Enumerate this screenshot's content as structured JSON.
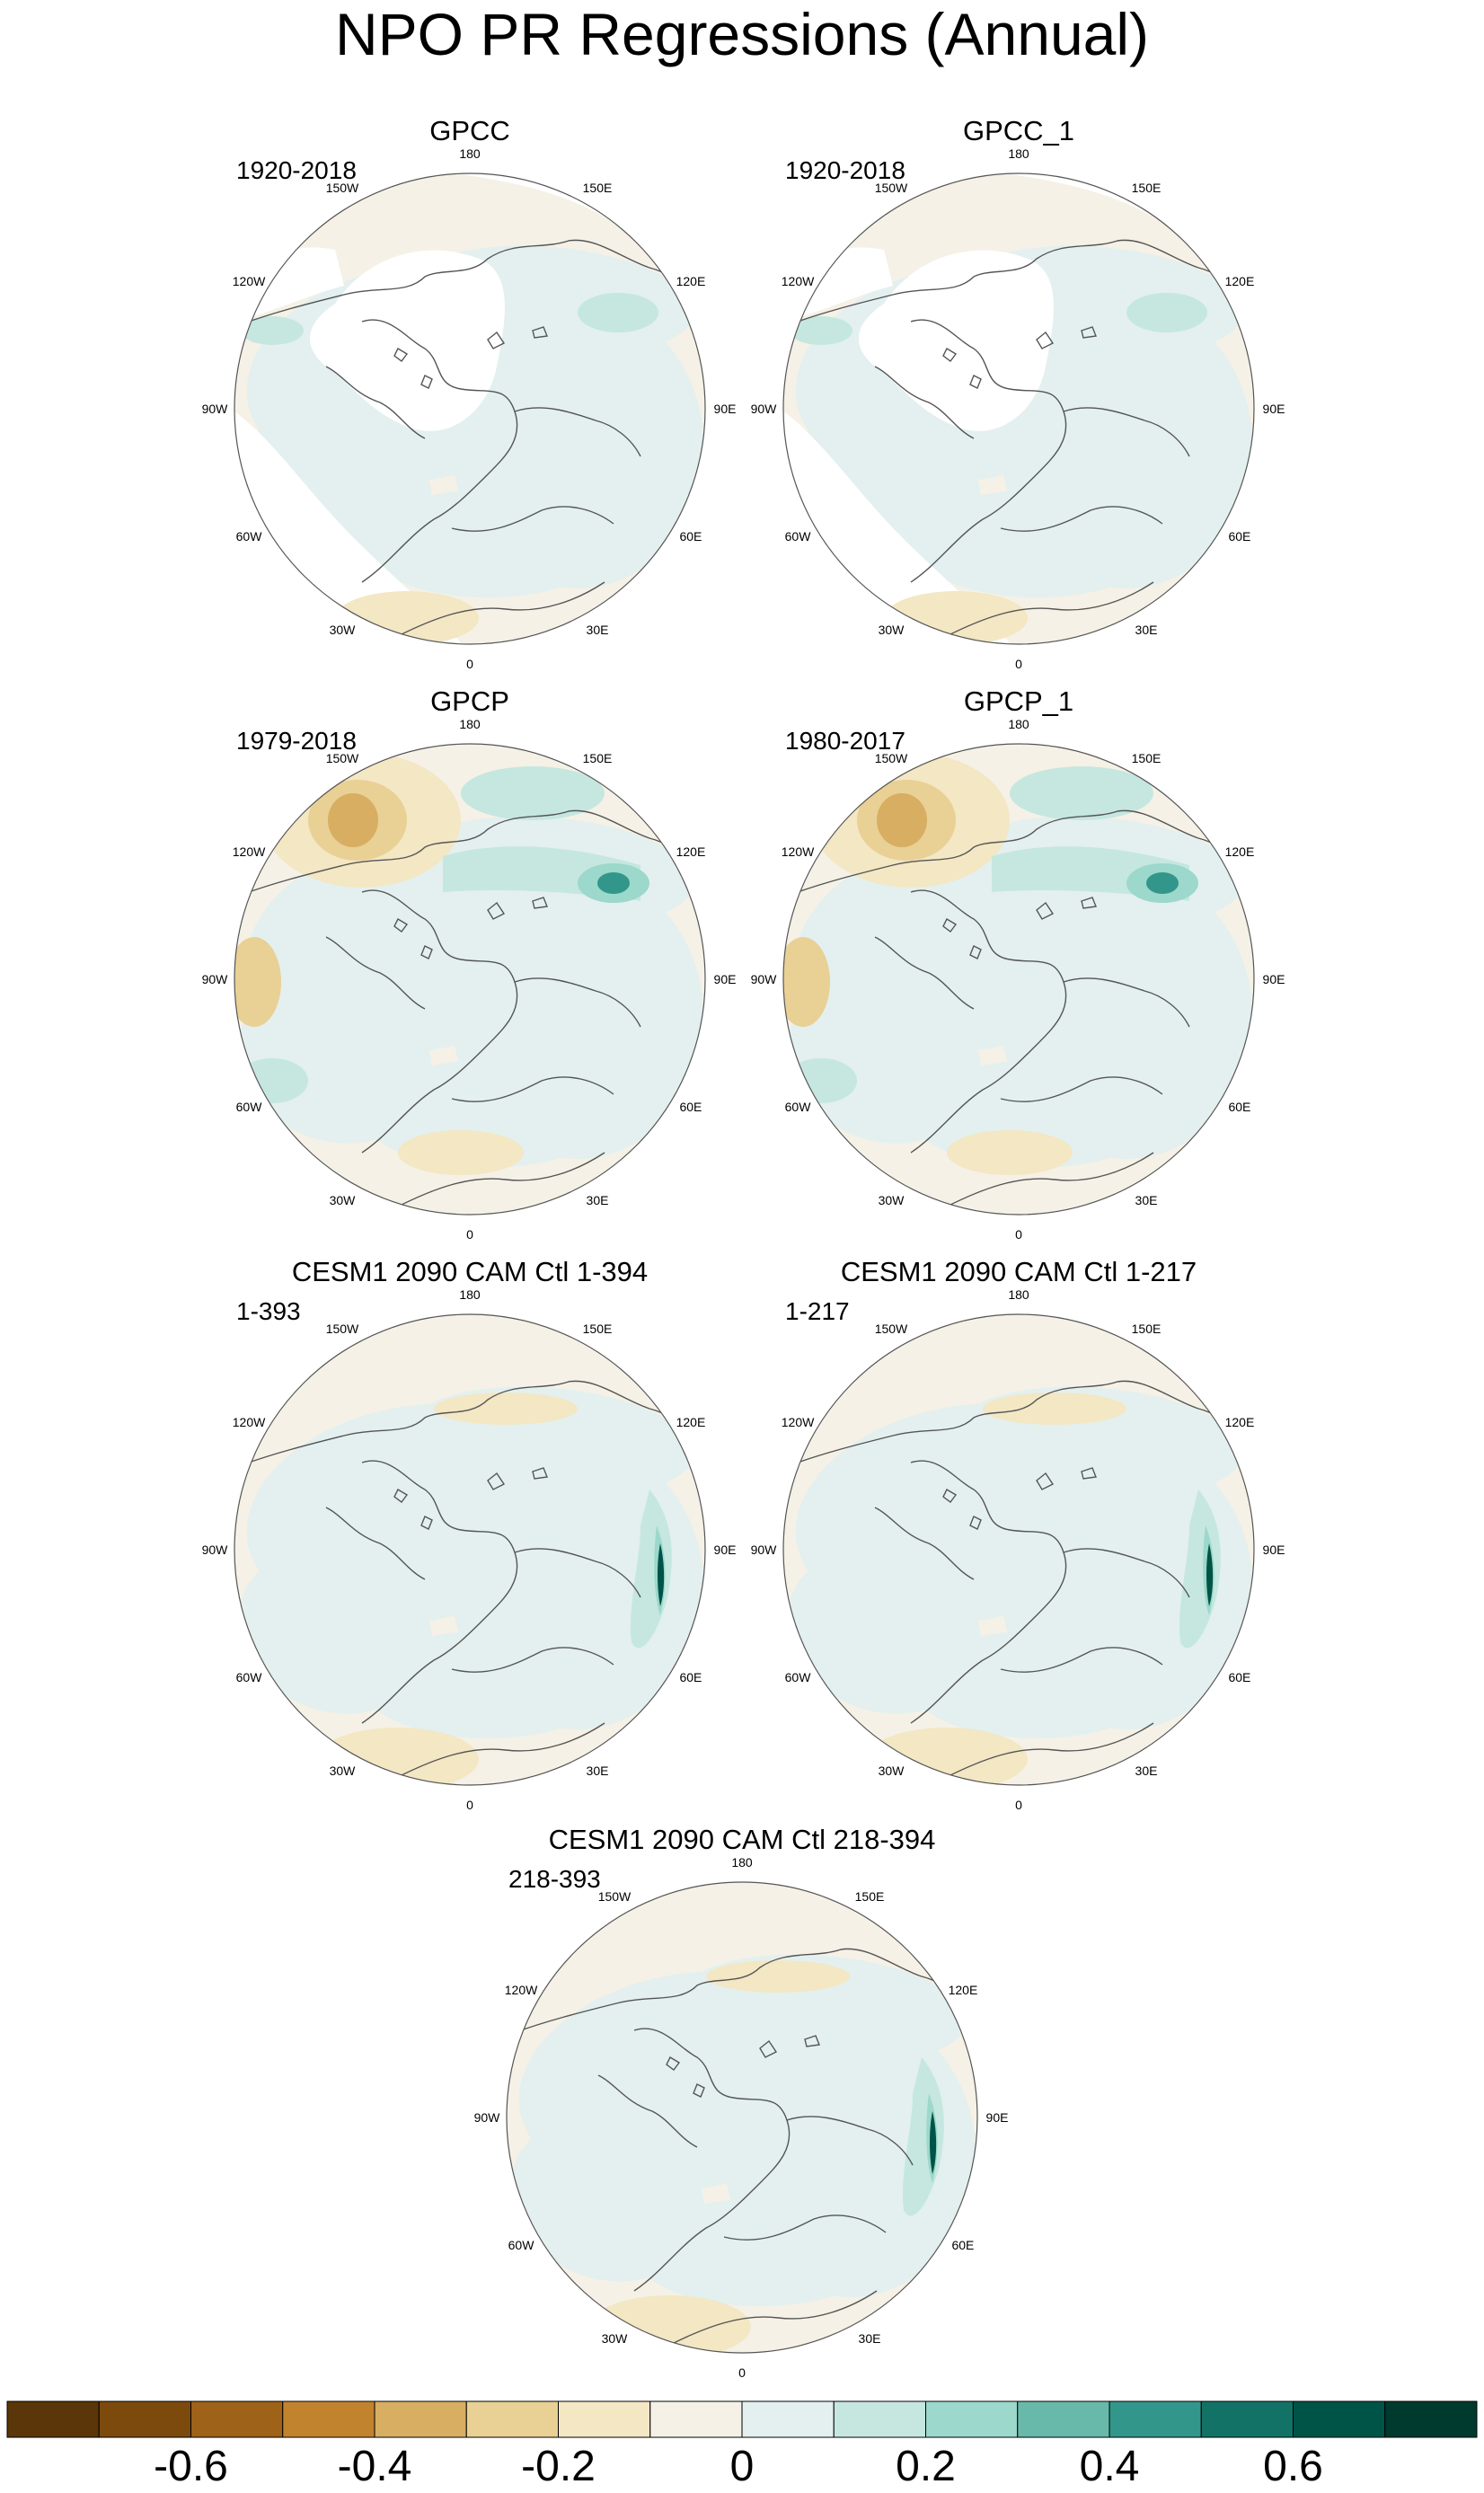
{
  "title": "NPO PR Regressions (Annual)",
  "lon_labels": [
    "180",
    "150E",
    "120E",
    "90E",
    "60E",
    "30E",
    "0",
    "30W",
    "60W",
    "90W",
    "120W",
    "150W"
  ],
  "panels": [
    {
      "title": "GPCC",
      "period": "1920-2018"
    },
    {
      "title": "GPCC_1",
      "period": "1920-2018"
    },
    {
      "title": "GPCP",
      "period": "1979-2018"
    },
    {
      "title": "GPCP_1",
      "period": "1980-2017"
    },
    {
      "title": "CESM1 2090 CAM Ctl 1-394",
      "period": "1-393"
    },
    {
      "title": "CESM1 2090 CAM Ctl 1-217",
      "period": "1-217"
    },
    {
      "title": "CESM1 2090 CAM Ctl 218-394",
      "period": "218-393"
    }
  ],
  "colorbar": {
    "colors": [
      "#5a3608",
      "#7d4a0e",
      "#9e6218",
      "#c1832e",
      "#d7ae62",
      "#e9d095",
      "#f3e7c4",
      "#f5f1e6",
      "#e3f0ef",
      "#c5e7e0",
      "#9cd8cb",
      "#68b9aa",
      "#33968a",
      "#137266",
      "#005447",
      "#003a2e"
    ],
    "labels": [
      "-0.6",
      "-0.4",
      "-0.2",
      "0",
      "0.2",
      "0.4",
      "0.6"
    ]
  },
  "map_colors": {
    "ocean_base": "#f5f1e6",
    "light_blue": "#e3f0ef",
    "mid_green": "#c5e7e0",
    "green": "#9cd8cb",
    "dark_green": "#33968a",
    "darkest_green": "#005447",
    "tan_light": "#f3e7c4",
    "tan": "#e9d095",
    "tan_dark": "#d7ae62",
    "brown": "#c1832e"
  }
}
